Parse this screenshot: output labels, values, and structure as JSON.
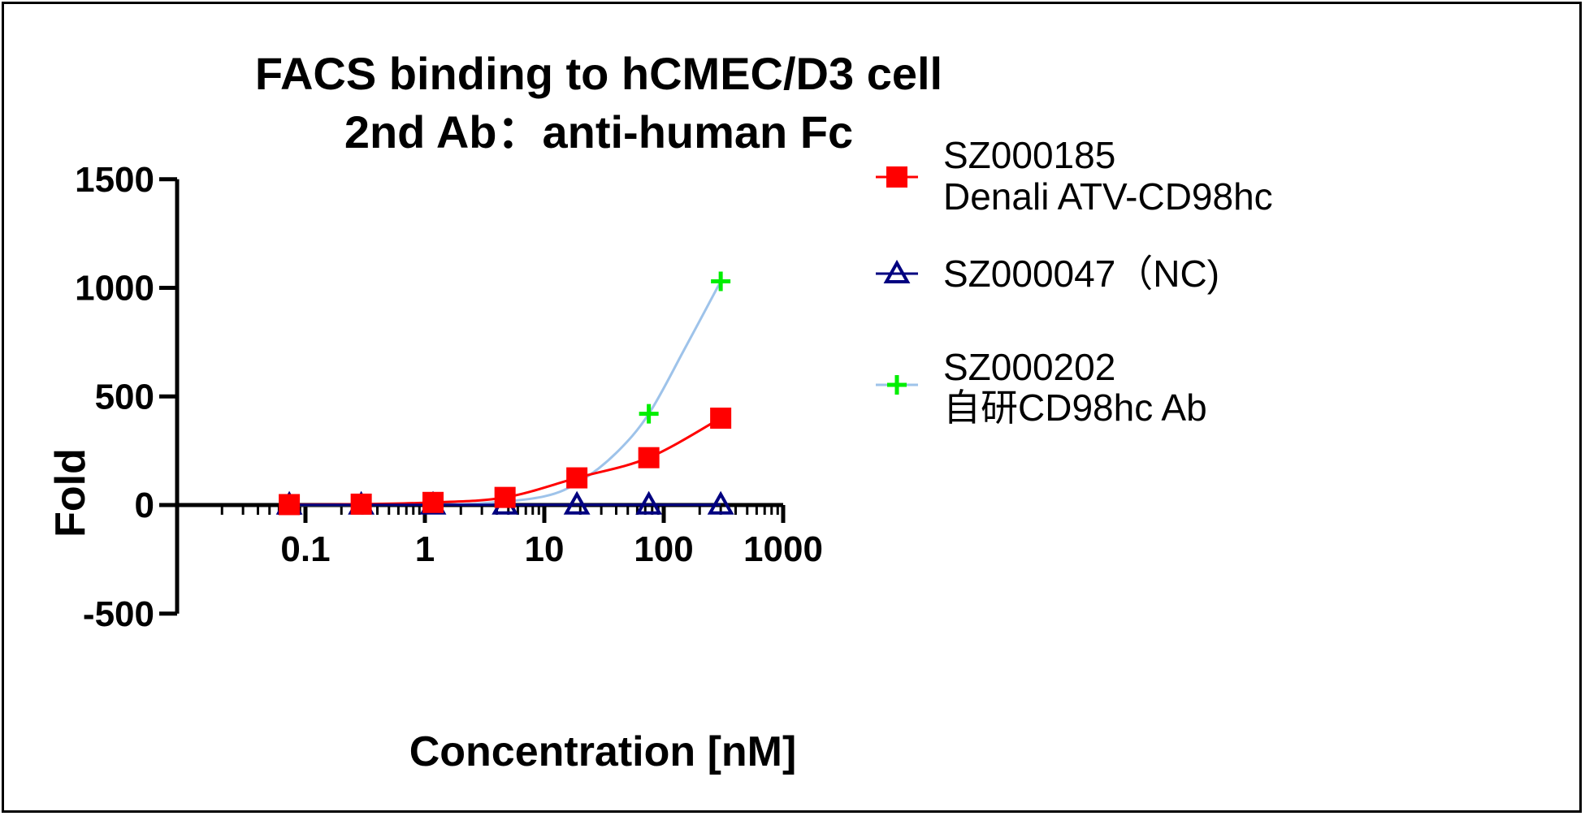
{
  "chart_data": {
    "type": "line",
    "title": [
      "FACS binding to hCMEC/D3 cell",
      "2nd Ab：anti-human Fc"
    ],
    "xlabel": "Concentration [nM]",
    "ylabel": "Fold",
    "x_scale": "log",
    "xlim": [
      0.01,
      1000
    ],
    "ylim": [
      -500,
      1500
    ],
    "x_ticks": [
      0.1,
      1,
      10,
      100,
      1000
    ],
    "x_tick_labels": [
      "0.1",
      "1",
      "10",
      "100",
      "1000"
    ],
    "y_ticks": [
      -500,
      0,
      500,
      1000,
      1500
    ],
    "y_tick_labels": [
      "-500",
      "0",
      "500",
      "1000",
      "1500"
    ],
    "legend_position": "right",
    "series": [
      {
        "name": [
          "SZ000185",
          "Denali ATV-CD98hc"
        ],
        "marker": "square",
        "marker_color": "#ff0000",
        "line_color": "#ff0000",
        "x": [
          0.0732,
          0.293,
          1.17,
          4.69,
          18.75,
          75,
          300
        ],
        "y": [
          2,
          4,
          12,
          35,
          125,
          218,
          400
        ]
      },
      {
        "name": [
          "SZ000047（NC)"
        ],
        "marker": "triangle-open",
        "marker_color": "#000080",
        "line_color": "#000080",
        "x": [
          0.0732,
          0.293,
          1.17,
          4.69,
          18.75,
          75,
          300
        ],
        "y": [
          1,
          1,
          1,
          1,
          1,
          1,
          1
        ]
      },
      {
        "name": [
          "SZ000202",
          "自研CD98hc Ab"
        ],
        "marker": "plus",
        "marker_color": "#00ee00",
        "line_color": "#9ec3ea",
        "x": [
          75,
          300
        ],
        "y": [
          420,
          1030
        ],
        "fit_x": [
          0.0732,
          0.3,
          1,
          3,
          10,
          20,
          40,
          75,
          150,
          300
        ],
        "fit_y": [
          0,
          1,
          2,
          8,
          40,
          110,
          240,
          420,
          720,
          1030
        ]
      }
    ]
  }
}
